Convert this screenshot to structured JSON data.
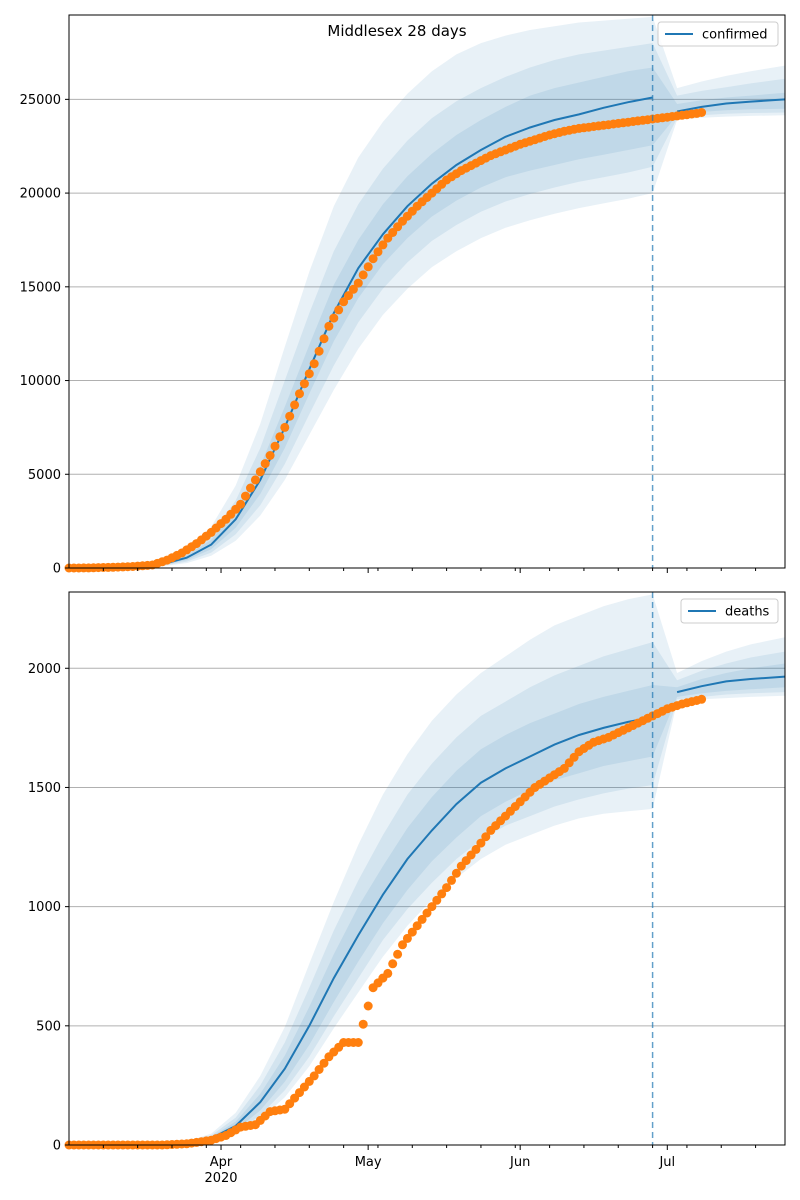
{
  "title": "Middlesex 28 days",
  "colors": {
    "model": "#1f77b4",
    "observed": "#ff7f0e",
    "grid": "#b0b0b0",
    "band": "#1f77b4"
  },
  "x_axis": {
    "start": "2020-03-01",
    "end": "2020-07-25",
    "ticks": [
      {
        "date": "2020-04-01",
        "label": "Apr",
        "sublabel": "2020"
      },
      {
        "date": "2020-05-01",
        "label": "May",
        "sublabel": ""
      },
      {
        "date": "2020-06-01",
        "label": "Jun",
        "sublabel": ""
      },
      {
        "date": "2020-07-01",
        "label": "Jul",
        "sublabel": ""
      }
    ],
    "forecast_date": "2020-06-28"
  },
  "chart_data": [
    {
      "type": "line",
      "title": "Middlesex 28 days",
      "legend": [
        "confirmed"
      ],
      "legend_position": "top-right",
      "grid": "horizontal",
      "xlim": [
        "2020-03-01",
        "2020-07-25"
      ],
      "ylim": [
        0,
        29500
      ],
      "yticks": [
        0,
        5000,
        10000,
        15000,
        20000,
        25000
      ],
      "model": {
        "name": "confirmed",
        "x": [
          "2020-03-01",
          "2020-03-10",
          "2020-03-15",
          "2020-03-20",
          "2020-03-25",
          "2020-03-30",
          "2020-04-04",
          "2020-04-09",
          "2020-04-14",
          "2020-04-19",
          "2020-04-24",
          "2020-04-29",
          "2020-05-04",
          "2020-05-09",
          "2020-05-14",
          "2020-05-19",
          "2020-05-24",
          "2020-05-29",
          "2020-06-03",
          "2020-06-08",
          "2020-06-13",
          "2020-06-18",
          "2020-06-23",
          "2020-06-28",
          "2020-07-03",
          "2020-07-08",
          "2020-07-13",
          "2020-07-18",
          "2020-07-25"
        ],
        "median": [
          0,
          30,
          80,
          200,
          550,
          1250,
          2600,
          4700,
          7500,
          10600,
          13600,
          16000,
          17800,
          19300,
          20500,
          21500,
          22300,
          23000,
          23500,
          23900,
          24200,
          24550,
          24850,
          25100,
          24350,
          24600,
          24780,
          24880,
          25000
        ],
        "bands": [
          {
            "lo": [
              0,
              20,
              60,
              150,
              420,
              1000,
              2150,
              3950,
              6400,
              9300,
              12100,
              14400,
              16200,
              17600,
              18750,
              19600,
              20300,
              20850,
              21200,
              21500,
              21800,
              22050,
              22300,
              22550,
              24150,
              24330,
              24420,
              24470,
              24500
            ],
            "hi": [
              0,
              40,
              100,
              250,
              680,
              1500,
              3050,
              5450,
              8600,
              11900,
              15100,
              17500,
              19400,
              20900,
              22100,
              23100,
              23900,
              24600,
              25200,
              25600,
              25900,
              26200,
              26500,
              26700,
              24750,
              24950,
              25100,
              25200,
              25350
            ]
          },
          {
            "lo": [
              0,
              15,
              45,
              120,
              340,
              820,
              1800,
              3350,
              5550,
              8200,
              10800,
              13100,
              14900,
              16300,
              17450,
              18300,
              19000,
              19550,
              19950,
              20300,
              20600,
              20850,
              21100,
              21400,
              24000,
              24150,
              24230,
              24270,
              24300
            ],
            "hi": [
              0,
              50,
              130,
              320,
              820,
              1800,
              3600,
              6400,
              10000,
              13600,
              16900,
              19400,
              21300,
              22800,
              24000,
              24900,
              25600,
              26200,
              26700,
              27100,
              27400,
              27600,
              27800,
              28000,
              25200,
              25450,
              25650,
              25850,
              26100
            ]
          },
          {
            "lo": [
              0,
              10,
              30,
              90,
              260,
              650,
              1450,
              2800,
              4700,
              7100,
              9500,
              11700,
              13500,
              14900,
              16050,
              16900,
              17600,
              18150,
              18550,
              18900,
              19200,
              19450,
              19700,
              20000,
              23900,
              24020,
              24080,
              24120,
              24150
            ],
            "hi": [
              0,
              60,
              160,
              400,
              1000,
              2200,
              4400,
              7700,
              11800,
              15800,
              19300,
              21900,
              23800,
              25300,
              26500,
              27400,
              28000,
              28400,
              28700,
              28900,
              29100,
              29200,
              29300,
              29400,
              25600,
              25950,
              26250,
              26500,
              26800
            ]
          }
        ]
      },
      "observed": {
        "name": "observed",
        "x": [
          "2020-03-01",
          "2020-03-05",
          "2020-03-10",
          "2020-03-14",
          "2020-03-18",
          "2020-03-21",
          "2020-03-24",
          "2020-03-27",
          "2020-03-30",
          "2020-04-02",
          "2020-04-05",
          "2020-04-08",
          "2020-04-11",
          "2020-04-14",
          "2020-04-17",
          "2020-04-20",
          "2020-04-23",
          "2020-04-26",
          "2020-04-29",
          "2020-05-02",
          "2020-05-05",
          "2020-05-08",
          "2020-05-11",
          "2020-05-14",
          "2020-05-17",
          "2020-05-20",
          "2020-05-23",
          "2020-05-26",
          "2020-05-29",
          "2020-06-01",
          "2020-06-04",
          "2020-06-07",
          "2020-06-10",
          "2020-06-13",
          "2020-06-16",
          "2020-06-19",
          "2020-06-22",
          "2020-06-25",
          "2020-06-28",
          "2020-07-01",
          "2020-07-04",
          "2020-07-07",
          "2020-07-08"
        ],
        "y": [
          0,
          5,
          40,
          80,
          160,
          420,
          800,
          1300,
          1900,
          2600,
          3400,
          4700,
          6000,
          7500,
          9300,
          10900,
          12900,
          14200,
          15200,
          16500,
          17600,
          18500,
          19300,
          20000,
          20700,
          21200,
          21600,
          22000,
          22300,
          22600,
          22850,
          23100,
          23300,
          23450,
          23550,
          23650,
          23750,
          23850,
          23950,
          24050,
          24150,
          24250,
          24300
        ]
      }
    },
    {
      "type": "line",
      "legend": [
        "deaths"
      ],
      "legend_position": "top-right",
      "grid": "horizontal",
      "xlim": [
        "2020-03-01",
        "2020-07-25"
      ],
      "ylim": [
        0,
        2320
      ],
      "yticks": [
        0,
        500,
        1000,
        1500,
        2000
      ],
      "model": {
        "name": "deaths",
        "x": [
          "2020-03-01",
          "2020-03-20",
          "2020-03-25",
          "2020-03-30",
          "2020-04-04",
          "2020-04-09",
          "2020-04-14",
          "2020-04-19",
          "2020-04-24",
          "2020-04-29",
          "2020-05-04",
          "2020-05-09",
          "2020-05-14",
          "2020-05-19",
          "2020-05-24",
          "2020-05-29",
          "2020-06-03",
          "2020-06-08",
          "2020-06-13",
          "2020-06-18",
          "2020-06-23",
          "2020-06-28",
          "2020-07-03",
          "2020-07-08",
          "2020-07-13",
          "2020-07-18",
          "2020-07-25"
        ],
        "median": [
          0,
          2,
          8,
          28,
          80,
          180,
          320,
          500,
          700,
          880,
          1050,
          1200,
          1320,
          1430,
          1520,
          1580,
          1630,
          1680,
          1720,
          1750,
          1775,
          1795,
          1900,
          1925,
          1945,
          1955,
          1965
        ],
        "bands": [
          {
            "lo": [
              0,
              1,
              6,
              22,
              62,
              145,
              265,
              420,
              600,
              770,
              930,
              1070,
              1190,
              1290,
              1380,
              1440,
              1490,
              1530,
              1560,
              1590,
              1610,
              1630,
              1880,
              1895,
              1905,
              1912,
              1920
            ],
            "hi": [
              0,
              3,
              10,
              34,
              98,
              215,
              375,
              580,
              800,
              1000,
              1170,
              1330,
              1460,
              1570,
              1660,
              1720,
              1770,
              1810,
              1850,
              1880,
              1905,
              1930,
              1920,
              1955,
              1980,
              2000,
              2020
            ]
          },
          {
            "lo": [
              0,
              1,
              5,
              18,
              52,
              125,
              230,
              370,
              540,
              700,
              860,
              990,
              1100,
              1200,
              1280,
              1340,
              1380,
              1420,
              1450,
              1475,
              1495,
              1510,
              1870,
              1880,
              1890,
              1895,
              1900
            ],
            "hi": [
              0,
              4,
              12,
              40,
              115,
              250,
              430,
              660,
              900,
              1110,
              1300,
              1470,
              1600,
              1710,
              1800,
              1860,
              1920,
              1970,
              2010,
              2050,
              2080,
              2110,
              1950,
              1990,
              2020,
              2045,
              2070
            ]
          },
          {
            "lo": [
              0,
              1,
              4,
              15,
              44,
              108,
              200,
              330,
              490,
              640,
              790,
              920,
              1030,
              1120,
              1200,
              1260,
              1300,
              1340,
              1370,
              1390,
              1400,
              1410,
              1860,
              1870,
              1875,
              1880,
              1885
            ],
            "hi": [
              0,
              5,
              15,
              48,
              135,
              290,
              495,
              760,
              1020,
              1260,
              1470,
              1640,
              1780,
              1890,
              1980,
              2050,
              2120,
              2180,
              2220,
              2260,
              2290,
              2310,
              1980,
              2030,
              2070,
              2100,
              2130
            ]
          }
        ]
      },
      "observed": {
        "name": "observed",
        "x": [
          "2020-03-01",
          "2020-03-10",
          "2020-03-20",
          "2020-03-25",
          "2020-03-30",
          "2020-04-02",
          "2020-04-05",
          "2020-04-08",
          "2020-04-11",
          "2020-04-14",
          "2020-04-17",
          "2020-04-20",
          "2020-04-23",
          "2020-04-26",
          "2020-04-29",
          "2020-05-02",
          "2020-05-05",
          "2020-05-08",
          "2020-05-11",
          "2020-05-14",
          "2020-05-17",
          "2020-05-20",
          "2020-05-23",
          "2020-05-26",
          "2020-05-29",
          "2020-06-01",
          "2020-06-04",
          "2020-06-07",
          "2020-06-10",
          "2020-06-13",
          "2020-06-16",
          "2020-06-19",
          "2020-06-22",
          "2020-06-25",
          "2020-06-28",
          "2020-07-01",
          "2020-07-04",
          "2020-07-08"
        ],
        "y": [
          0,
          0,
          0,
          5,
          20,
          40,
          75,
          85,
          140,
          150,
          220,
          290,
          370,
          430,
          430,
          660,
          720,
          840,
          920,
          1000,
          1080,
          1170,
          1240,
          1320,
          1380,
          1440,
          1500,
          1540,
          1580,
          1650,
          1690,
          1710,
          1740,
          1770,
          1800,
          1830,
          1850,
          1870
        ]
      }
    }
  ]
}
